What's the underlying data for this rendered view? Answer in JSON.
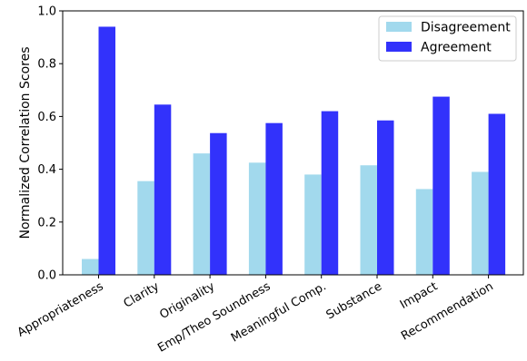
{
  "chart_data": {
    "type": "bar",
    "ylabel": "Normalized Correlation Scores",
    "xlabel": "",
    "ylim": [
      0.0,
      1.0
    ],
    "yticks": [
      "0.0",
      "0.2",
      "0.4",
      "0.6",
      "0.8",
      "1.0"
    ],
    "categories": [
      "Appropriateness",
      "Clarity",
      "Originality",
      "Emp/Theo Soundness",
      "Meaningful Comp.",
      "Substance",
      "Impact",
      "Recommendation"
    ],
    "series": [
      {
        "name": "Disagreement",
        "color": "#a2d9ed",
        "values": [
          0.06,
          0.355,
          0.46,
          0.425,
          0.38,
          0.415,
          0.325,
          0.39
        ]
      },
      {
        "name": "Agreement",
        "color": "#3232fb",
        "values": [
          0.94,
          0.645,
          0.537,
          0.575,
          0.62,
          0.585,
          0.675,
          0.61
        ]
      }
    ],
    "legend": "top-right",
    "grid": false
  }
}
